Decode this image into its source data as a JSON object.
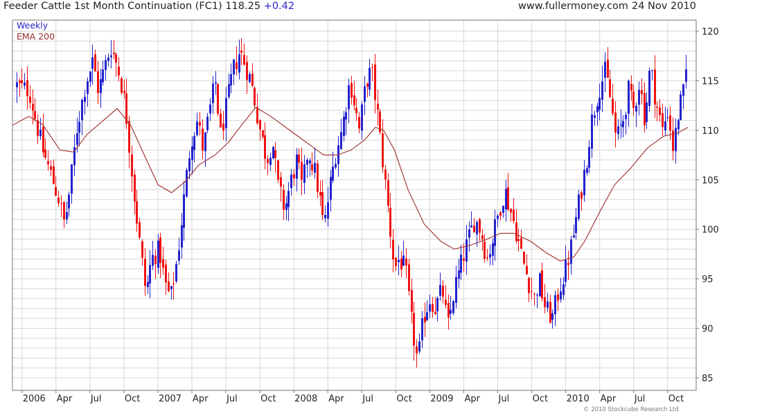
{
  "header": {
    "title": "Feeder Cattle 1st Month Continuation (FC1) 118.25",
    "change": "+0.42",
    "site": "www.fullermoney.com",
    "date": "24 Nov 2010"
  },
  "legend": {
    "period": "Weekly",
    "ema": "EMA 200"
  },
  "copyright": "© 2010 Stockcube Research Ltd",
  "colors": {
    "up": "#2222cc",
    "down": "#ee1111",
    "ema": "#9e2a2a",
    "grid": "#d6d6d6"
  },
  "chart_data": {
    "type": "candlestick",
    "title": "Feeder Cattle 1st Month Continuation (FC1) 118.25",
    "ylim": [
      84,
      121
    ],
    "yticks": [
      85,
      90,
      95,
      100,
      105,
      110,
      115,
      120
    ],
    "xlim": [
      2005.93,
      2010.96
    ],
    "xticks": [
      {
        "label": "2006",
        "x": 2006.0
      },
      {
        "label": "Apr",
        "x": 2006.25
      },
      {
        "label": "Jul",
        "x": 2006.5
      },
      {
        "label": "Oct",
        "x": 2006.75
      },
      {
        "label": "2007",
        "x": 2007.0
      },
      {
        "label": "Apr",
        "x": 2007.25
      },
      {
        "label": "Jul",
        "x": 2007.5
      },
      {
        "label": "Oct",
        "x": 2007.75
      },
      {
        "label": "2008",
        "x": 2008.0
      },
      {
        "label": "Apr",
        "x": 2008.25
      },
      {
        "label": "Jul",
        "x": 2008.5
      },
      {
        "label": "Oct",
        "x": 2008.75
      },
      {
        "label": "2009",
        "x": 2009.0
      },
      {
        "label": "Apr",
        "x": 2009.25
      },
      {
        "label": "Jul",
        "x": 2009.5
      },
      {
        "label": "Oct",
        "x": 2009.75
      },
      {
        "label": "2010",
        "x": 2010.0
      },
      {
        "label": "Apr",
        "x": 2010.25
      },
      {
        "label": "Jul",
        "x": 2010.5
      },
      {
        "label": "Oct",
        "x": 2010.75
      }
    ],
    "close_path": [
      [
        2005.96,
        114.5
      ],
      [
        2006.05,
        114
      ],
      [
        2006.1,
        111
      ],
      [
        2006.15,
        108
      ],
      [
        2006.2,
        106
      ],
      [
        2006.27,
        103
      ],
      [
        2006.31,
        100.5
      ],
      [
        2006.35,
        104
      ],
      [
        2006.4,
        110
      ],
      [
        2006.47,
        115
      ],
      [
        2006.52,
        117
      ],
      [
        2006.56,
        114
      ],
      [
        2006.6,
        116
      ],
      [
        2006.65,
        118.5
      ],
      [
        2006.7,
        116.5
      ],
      [
        2006.74,
        114
      ],
      [
        2006.77,
        111
      ],
      [
        2006.82,
        104
      ],
      [
        2006.87,
        98
      ],
      [
        2006.91,
        93.5
      ],
      [
        2006.95,
        97
      ],
      [
        2007.01,
        98
      ],
      [
        2007.05,
        94.5
      ],
      [
        2007.09,
        93
      ],
      [
        2007.14,
        97
      ],
      [
        2007.19,
        103
      ],
      [
        2007.24,
        109
      ],
      [
        2007.29,
        111
      ],
      [
        2007.33,
        108
      ],
      [
        2007.38,
        112
      ],
      [
        2007.42,
        115
      ],
      [
        2007.46,
        109.5
      ],
      [
        2007.51,
        113
      ],
      [
        2007.55,
        116
      ],
      [
        2007.6,
        118
      ],
      [
        2007.63,
        117
      ],
      [
        2007.68,
        115
      ],
      [
        2007.71,
        113
      ],
      [
        2007.75,
        110
      ],
      [
        2007.8,
        107
      ],
      [
        2007.84,
        109
      ],
      [
        2007.88,
        104.5
      ],
      [
        2007.93,
        102
      ],
      [
        2007.98,
        105
      ],
      [
        2008.02,
        107
      ],
      [
        2008.06,
        104
      ],
      [
        2008.1,
        108
      ],
      [
        2008.15,
        106
      ],
      [
        2008.19,
        103
      ],
      [
        2008.22,
        100
      ],
      [
        2008.26,
        104
      ],
      [
        2008.31,
        108
      ],
      [
        2008.35,
        110
      ],
      [
        2008.41,
        115
      ],
      [
        2008.44,
        113
      ],
      [
        2008.48,
        110
      ],
      [
        2008.53,
        115
      ],
      [
        2008.57,
        116
      ],
      [
        2008.61,
        112
      ],
      [
        2008.66,
        106
      ],
      [
        2008.7,
        101
      ],
      [
        2008.74,
        96
      ],
      [
        2008.77,
        97
      ],
      [
        2008.82,
        96
      ],
      [
        2008.86,
        91
      ],
      [
        2008.91,
        86.5
      ],
      [
        2008.95,
        91
      ],
      [
        2009.0,
        93
      ],
      [
        2009.04,
        92
      ],
      [
        2009.09,
        94
      ],
      [
        2009.13,
        90
      ],
      [
        2009.18,
        94
      ],
      [
        2009.22,
        96
      ],
      [
        2009.26,
        98
      ],
      [
        2009.33,
        101
      ],
      [
        2009.37,
        100
      ],
      [
        2009.42,
        97
      ],
      [
        2009.46,
        99
      ],
      [
        2009.51,
        102
      ],
      [
        2009.55,
        104
      ],
      [
        2009.59,
        102
      ],
      [
        2009.63,
        100
      ],
      [
        2009.68,
        97
      ],
      [
        2009.72,
        95
      ],
      [
        2009.77,
        93
      ],
      [
        2009.8,
        95
      ],
      [
        2009.85,
        92
      ],
      [
        2009.9,
        91
      ],
      [
        2009.95,
        94
      ],
      [
        2010.0,
        96
      ],
      [
        2010.05,
        99
      ],
      [
        2010.1,
        103
      ],
      [
        2010.15,
        107
      ],
      [
        2010.19,
        111
      ],
      [
        2010.24,
        114
      ],
      [
        2010.29,
        116
      ],
      [
        2010.33,
        113
      ],
      [
        2010.37,
        109
      ],
      [
        2010.42,
        111
      ],
      [
        2010.46,
        114
      ],
      [
        2010.5,
        112
      ],
      [
        2010.54,
        115
      ],
      [
        2010.58,
        111
      ],
      [
        2010.62,
        116.5
      ],
      [
        2010.66,
        113
      ],
      [
        2010.71,
        110
      ],
      [
        2010.75,
        112
      ],
      [
        2010.79,
        108
      ],
      [
        2010.83,
        112
      ],
      [
        2010.87,
        114
      ],
      [
        2010.9,
        118.25
      ]
    ],
    "ema_path": [
      [
        2005.93,
        110.5
      ],
      [
        2006.05,
        111.4
      ],
      [
        2006.15,
        110.6
      ],
      [
        2006.28,
        108
      ],
      [
        2006.38,
        107.8
      ],
      [
        2006.48,
        109.6
      ],
      [
        2006.6,
        111
      ],
      [
        2006.7,
        112.2
      ],
      [
        2006.8,
        110.5
      ],
      [
        2006.9,
        107.5
      ],
      [
        2007.0,
        104.5
      ],
      [
        2007.1,
        103.7
      ],
      [
        2007.2,
        104.8
      ],
      [
        2007.3,
        106.5
      ],
      [
        2007.42,
        107.5
      ],
      [
        2007.52,
        108.8
      ],
      [
        2007.62,
        110.6
      ],
      [
        2007.72,
        112.3
      ],
      [
        2007.82,
        111.5
      ],
      [
        2007.92,
        110.5
      ],
      [
        2008.02,
        109.5
      ],
      [
        2008.12,
        108.5
      ],
      [
        2008.22,
        107.5
      ],
      [
        2008.32,
        107.5
      ],
      [
        2008.42,
        108
      ],
      [
        2008.52,
        109
      ],
      [
        2008.6,
        110.3
      ],
      [
        2008.66,
        110
      ],
      [
        2008.74,
        108
      ],
      [
        2008.84,
        104
      ],
      [
        2008.96,
        100.5
      ],
      [
        2009.08,
        98.8
      ],
      [
        2009.18,
        98
      ],
      [
        2009.3,
        98.4
      ],
      [
        2009.42,
        99
      ],
      [
        2009.52,
        99.6
      ],
      [
        2009.62,
        99.6
      ],
      [
        2009.74,
        98.8
      ],
      [
        2009.86,
        97.6
      ],
      [
        2009.96,
        96.8
      ],
      [
        2010.06,
        97.2
      ],
      [
        2010.14,
        98.8
      ],
      [
        2010.26,
        102
      ],
      [
        2010.36,
        104.5
      ],
      [
        2010.48,
        106.2
      ],
      [
        2010.6,
        108.2
      ],
      [
        2010.72,
        109.4
      ],
      [
        2010.82,
        109.7
      ],
      [
        2010.9,
        110.3
      ]
    ]
  }
}
